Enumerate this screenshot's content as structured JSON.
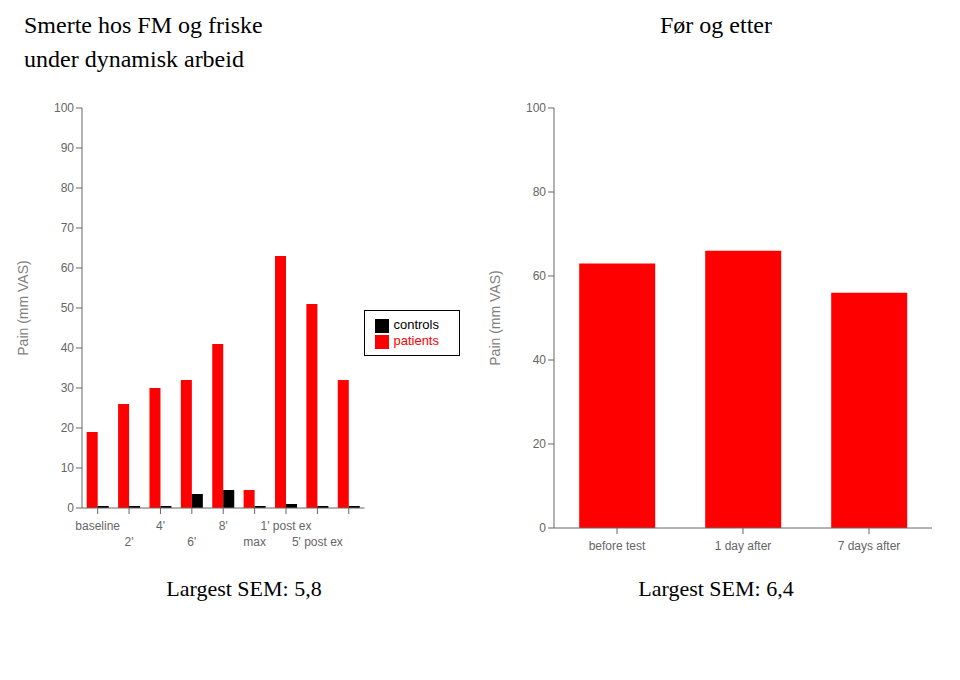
{
  "chart_data": [
    {
      "type": "bar",
      "title": "Smerte hos FM og friske\nunder dynamisk arbeid",
      "categories": [
        "baseline",
        "2'",
        "4'",
        "6'",
        "8'",
        "max",
        "1' post ex",
        "5' post ex",
        null
      ],
      "series": [
        {
          "name": "patients",
          "color": "#ff0000",
          "values": [
            19,
            26,
            30,
            32,
            41,
            4.5,
            63,
            51,
            32
          ]
        },
        {
          "name": "controls",
          "color": "#000000",
          "values": [
            0.5,
            0.5,
            0.5,
            3.5,
            4.5,
            0.5,
            1,
            0.5,
            0.5
          ]
        }
      ],
      "y_label": "Pain (mm VAS)",
      "ylim": [
        0,
        100
      ],
      "yticks": [
        0,
        10,
        20,
        30,
        40,
        50,
        60,
        70,
        80,
        90,
        100
      ],
      "legend": "right",
      "grid": false,
      "annotations": [
        "Largest SEM: 5,8"
      ]
    },
    {
      "type": "bar",
      "title": "Før og etter",
      "categories": [
        "before test",
        "1 day after",
        "7 days after"
      ],
      "values": [
        63,
        66,
        56
      ],
      "color": "#ff0000",
      "y_label": "Pain (mm VAS)",
      "ylim": [
        0,
        100
      ],
      "yticks": [
        0,
        20,
        40,
        60,
        80,
        100
      ],
      "grid": false,
      "annotations": [
        "Largest SEM: 6,4"
      ]
    }
  ]
}
